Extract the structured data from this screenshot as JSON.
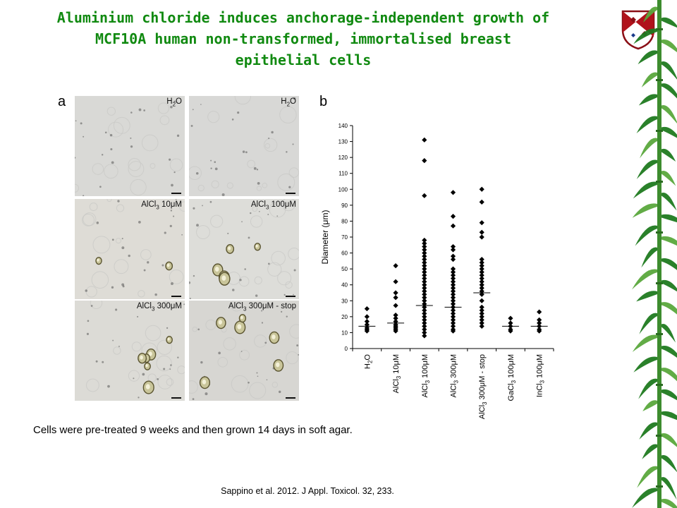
{
  "title": {
    "lines": [
      "Aluminium chloride induces anchorage-independent growth of",
      "MCF10A human non-transformed, immortalised breast",
      "epithelial cells"
    ]
  },
  "panel_a": {
    "letter": "a",
    "tiles": [
      {
        "label": "H",
        "sub": "2",
        "rest": "O"
      },
      {
        "label": "H",
        "sub": "2",
        "rest": "O"
      },
      {
        "label": "AlCl",
        "sub": "3",
        "rest": " 10μM"
      },
      {
        "label": "AlCl",
        "sub": "3",
        "rest": " 100μM"
      },
      {
        "label": "AlCl",
        "sub": "3",
        "rest": " 300μM"
      },
      {
        "label": "AlCl",
        "sub": "3",
        "rest": " 300μM - stop"
      }
    ]
  },
  "panel_b": {
    "letter": "b"
  },
  "chart_data": {
    "type": "scatter",
    "ylabel": "Diameter (μm)",
    "ylim": [
      0,
      140
    ],
    "yticks": [
      0,
      10,
      20,
      30,
      40,
      50,
      60,
      70,
      80,
      90,
      100,
      110,
      120,
      130,
      140
    ],
    "categories": [
      {
        "base": "H",
        "sub": "2",
        "rest": "O"
      },
      {
        "base": "AlCl",
        "sub": "3",
        "rest": " 10μM"
      },
      {
        "base": "AlCl",
        "sub": "3",
        "rest": " 100μM"
      },
      {
        "base": "AlCl",
        "sub": "3",
        "rest": " 300μM"
      },
      {
        "base": "AlCl",
        "sub": "3",
        "rest": " 300μM - stop"
      },
      {
        "base": "GaCl",
        "sub": "3",
        "rest": " 100μM"
      },
      {
        "base": "InCl",
        "sub": "3",
        "rest": " 100μM"
      }
    ],
    "points": [
      [
        25,
        20,
        17,
        15,
        13,
        12,
        11
      ],
      [
        52,
        42,
        35,
        32,
        27,
        21,
        19,
        17,
        15,
        14,
        13,
        12,
        11
      ],
      [
        131,
        118,
        96,
        68,
        66,
        64,
        62,
        60,
        58,
        56,
        54,
        52,
        50,
        48,
        46,
        44,
        42,
        40,
        38,
        36,
        34,
        32,
        30,
        28,
        26,
        24,
        22,
        20,
        18,
        16,
        14,
        12,
        10,
        8
      ],
      [
        98,
        83,
        77,
        64,
        62,
        58,
        56,
        50,
        48,
        46,
        44,
        42,
        40,
        38,
        36,
        34,
        32,
        30,
        28,
        26,
        24,
        22,
        20,
        18,
        16,
        14,
        12,
        11
      ],
      [
        100,
        92,
        79,
        73,
        70,
        56,
        54,
        52,
        50,
        48,
        46,
        44,
        42,
        40,
        38,
        36,
        34,
        30,
        26,
        24,
        22,
        20,
        18,
        16,
        14
      ],
      [
        19,
        16,
        14,
        12,
        11
      ],
      [
        23,
        18,
        16,
        14,
        12,
        11
      ]
    ],
    "means": [
      14,
      16,
      27,
      26,
      35,
      14,
      14
    ],
    "marker": "diamond",
    "color": "#000000"
  },
  "caption": "Cells  were pre-treated 9 weeks and then grown 14 days in soft agar.",
  "citation": "Sappino et al. 2012. J Appl. Toxicol. 32, 233.",
  "theme": {
    "title_color": "#118a11",
    "bamboo_color": "#1f7a1f"
  }
}
